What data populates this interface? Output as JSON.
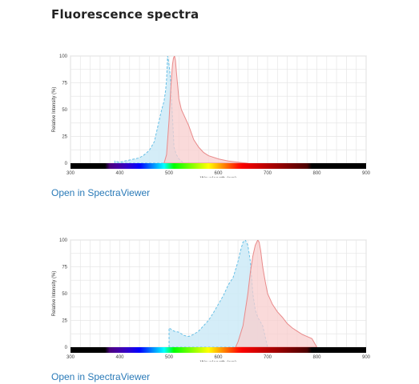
{
  "page": {
    "title": "Fluorescence spectra"
  },
  "links": {
    "open_viewer_1": "Open in SpectraViewer",
    "open_viewer_2": "Open in SpectraViewer"
  },
  "colors": {
    "excitation_fill": "#cdeaf7",
    "excitation_stroke": "#69c0e6",
    "emission_fill": "#f8cdcd",
    "emission_stroke": "#e88a8a",
    "overlap_fill": "#bfb6c8",
    "grid": "#e6e6e6",
    "link": "#2a7ab8"
  },
  "chart_data": [
    {
      "type": "area",
      "xlabel": "Wavelength (nm)",
      "ylabel": "Relative Intensity (%)",
      "xlim": [
        300,
        900
      ],
      "ylim": [
        0,
        100
      ],
      "xticks": [
        300,
        400,
        500,
        600,
        700,
        800,
        900
      ],
      "yticks": [
        0,
        25,
        50,
        75,
        100
      ],
      "grid": true,
      "series": [
        {
          "role": "excitation",
          "x": [
            390,
            400,
            420,
            440,
            450,
            460,
            470,
            480,
            485,
            490,
            493,
            495,
            497,
            500,
            503,
            505,
            508,
            510,
            515,
            520,
            525,
            530
          ],
          "values": [
            2,
            1,
            3,
            5,
            8,
            12,
            20,
            40,
            50,
            58,
            68,
            78,
            100,
            92,
            80,
            60,
            35,
            15,
            8,
            4,
            2,
            0
          ]
        },
        {
          "role": "emission",
          "x": [
            490,
            495,
            500,
            503,
            505,
            507,
            509,
            511,
            513,
            515,
            520,
            525,
            530,
            540,
            550,
            560,
            570,
            580,
            600,
            620,
            640,
            660
          ],
          "values": [
            0,
            8,
            40,
            65,
            80,
            92,
            98,
            100,
            96,
            85,
            60,
            50,
            45,
            35,
            22,
            15,
            10,
            7,
            4,
            2,
            1,
            0
          ]
        }
      ]
    },
    {
      "type": "area",
      "xlabel": "Wavelength (nm)",
      "ylabel": "Relative Intensity (%)",
      "xlim": [
        300,
        900
      ],
      "ylim": [
        0,
        100
      ],
      "xticks": [
        300,
        400,
        500,
        600,
        700,
        800,
        900
      ],
      "yticks": [
        0,
        25,
        50,
        75,
        100
      ],
      "grid": true,
      "series": [
        {
          "role": "excitation",
          "x": [
            500,
            510,
            520,
            530,
            540,
            550,
            560,
            570,
            580,
            590,
            600,
            610,
            620,
            630,
            640,
            645,
            650,
            655,
            660,
            665,
            670,
            675,
            680,
            690,
            700
          ],
          "values": [
            18,
            15,
            14,
            11,
            10,
            12,
            15,
            20,
            25,
            32,
            40,
            48,
            58,
            65,
            80,
            90,
            98,
            100,
            95,
            80,
            50,
            35,
            28,
            20,
            0
          ]
        },
        {
          "role": "emission",
          "x": [
            635,
            640,
            650,
            660,
            665,
            670,
            675,
            680,
            683,
            686,
            690,
            695,
            700,
            710,
            720,
            730,
            740,
            750,
            760,
            770,
            780,
            790,
            800
          ],
          "values": [
            0,
            5,
            20,
            50,
            70,
            85,
            95,
            100,
            98,
            90,
            75,
            62,
            50,
            40,
            33,
            28,
            22,
            18,
            15,
            12,
            10,
            8,
            0
          ]
        }
      ]
    }
  ]
}
